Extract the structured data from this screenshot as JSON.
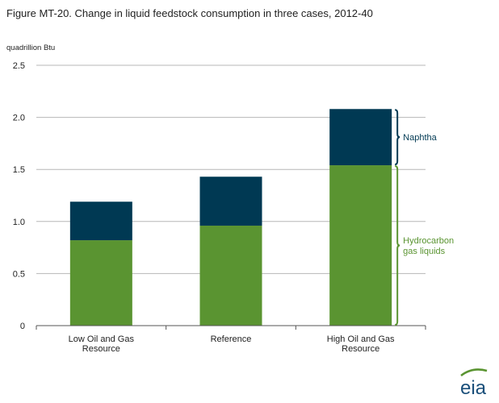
{
  "chart_data": {
    "type": "bar",
    "stacked": true,
    "title": "Figure MT-20. Change in liquid feedstock consumption in three cases, 2012-40",
    "unit_label": "quadrillion  Btu",
    "categories": [
      [
        "Low Oil and Gas",
        "Resource"
      ],
      [
        "Reference"
      ],
      [
        "High Oil and Gas",
        "Resource"
      ]
    ],
    "series": [
      {
        "name": "Hydrocarbon gas liquids",
        "label_lines": [
          "Hydrocarbon",
          "gas liquids"
        ],
        "color": "#5a9431",
        "values": [
          0.82,
          0.96,
          1.54
        ]
      },
      {
        "name": "Naphtha",
        "label_lines": [
          "Naphtha"
        ],
        "color": "#003953",
        "values": [
          0.37,
          0.47,
          0.54
        ]
      }
    ],
    "yticks": [
      "0",
      "0.5",
      "1.0",
      "1.5",
      "2.0",
      "2.5"
    ],
    "ylim": [
      0,
      2.5
    ],
    "grid": true,
    "legend": "brackets-right"
  },
  "logo": {
    "text": "eia",
    "color": "#1a4f7a",
    "swoosh_color": "#5a9431"
  }
}
